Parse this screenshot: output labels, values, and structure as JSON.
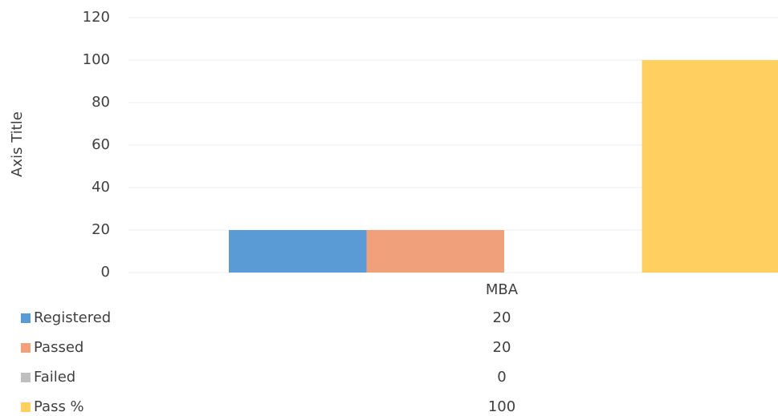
{
  "chart_data": {
    "type": "bar",
    "y_axis_title": "Axis Title",
    "categories": [
      "MBA"
    ],
    "series": [
      {
        "name": "Registered",
        "color": "#5b9bd5",
        "values": [
          20
        ]
      },
      {
        "name": "Passed",
        "color": "#f0a07a",
        "values": [
          20
        ]
      },
      {
        "name": "Failed",
        "color": "#bfbfbf",
        "values": [
          0
        ]
      },
      {
        "name": "Pass %",
        "color": "#ffd060",
        "values": [
          100
        ]
      }
    ],
    "ylim": [
      0,
      120
    ],
    "yticks": [
      0,
      20,
      40,
      60,
      80,
      100,
      120
    ],
    "grid": true,
    "data_table": true
  }
}
